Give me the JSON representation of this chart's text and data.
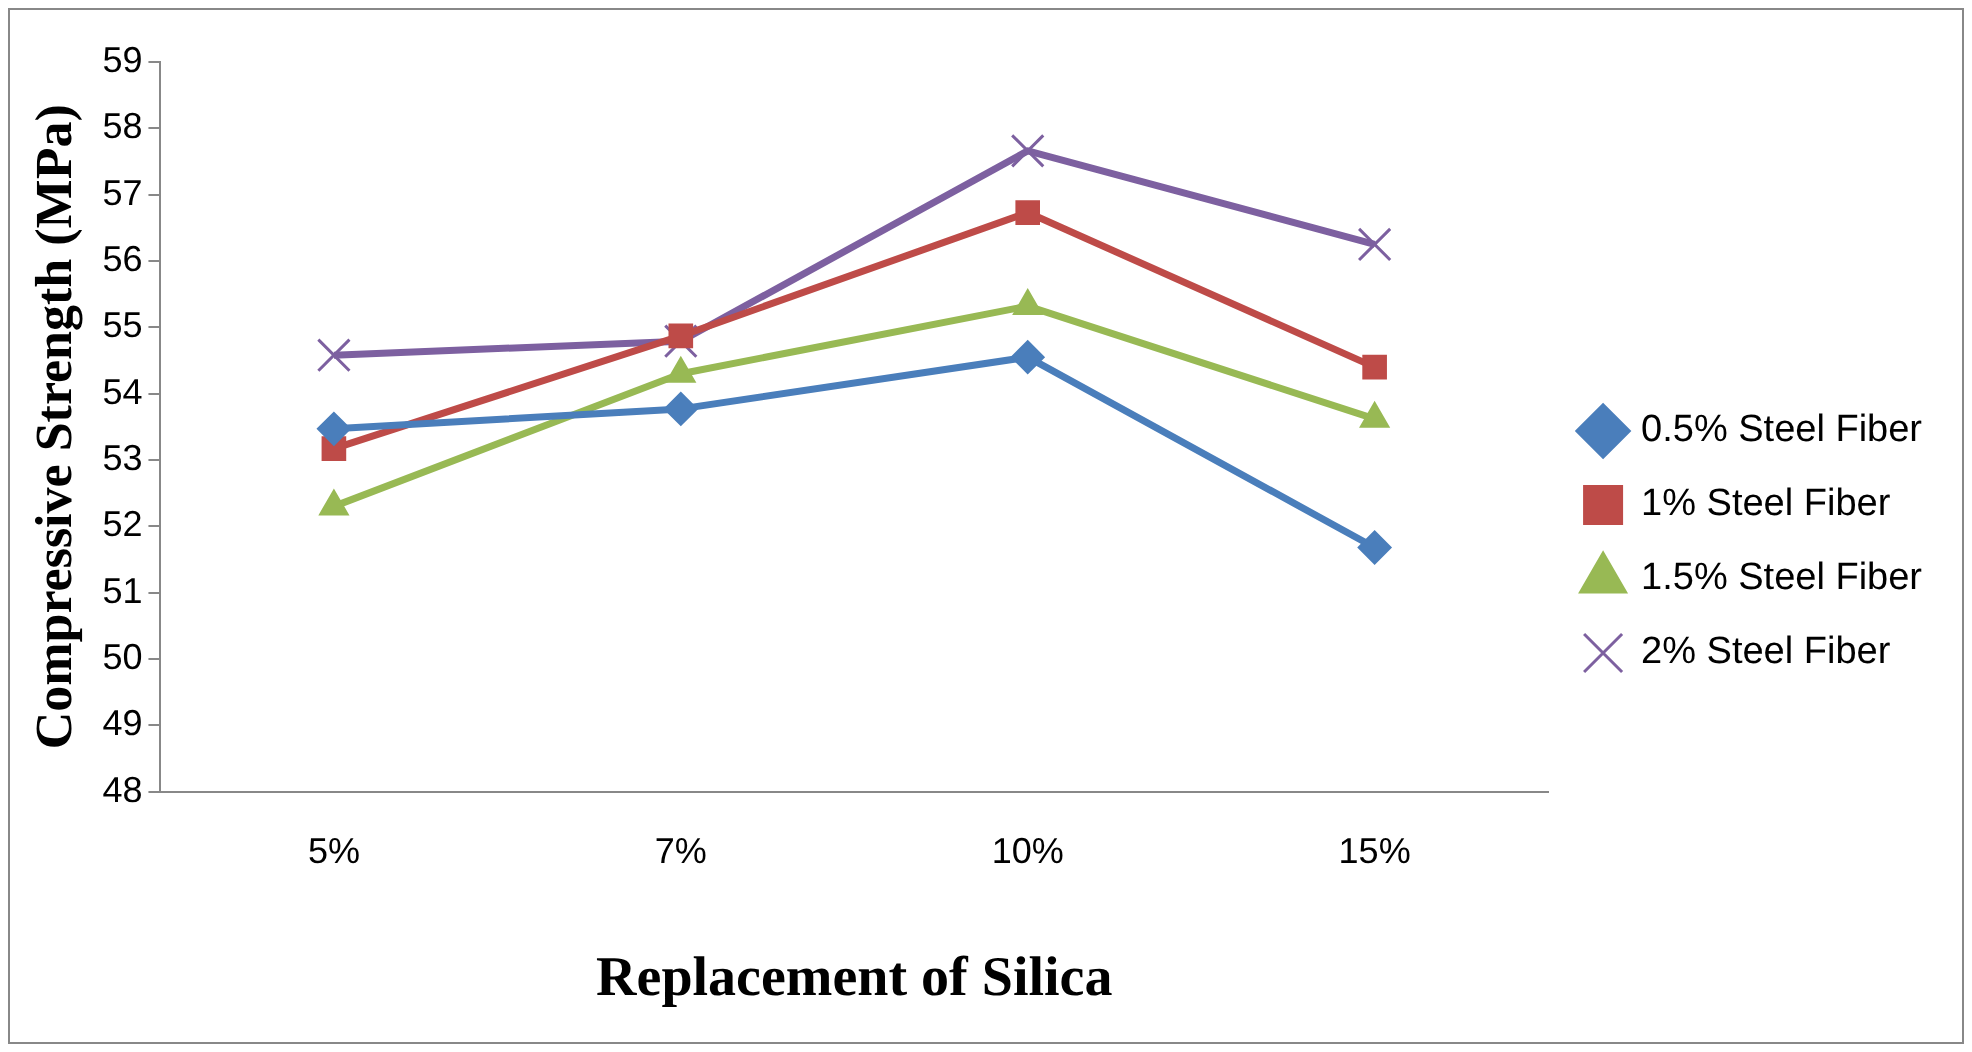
{
  "chart_data": {
    "type": "line",
    "xlabel": "Replacement of Silica",
    "ylabel": "Compressive Strength (MPa)",
    "categories": [
      "5%",
      "7%",
      "10%",
      "15%"
    ],
    "ylim": [
      48,
      59
    ],
    "yticks": [
      48,
      49,
      50,
      51,
      52,
      53,
      54,
      55,
      56,
      57,
      58,
      59
    ],
    "grid": false,
    "legend": "right",
    "series": [
      {
        "name": "0.5% Steel Fiber",
        "color": "#4a7ebb",
        "marker": "diamond",
        "values": [
          53.47,
          53.77,
          54.55,
          51.68
        ]
      },
      {
        "name": "1% Steel Fiber",
        "color": "#be4b48",
        "marker": "square",
        "values": [
          53.17,
          54.87,
          56.73,
          54.4
        ]
      },
      {
        "name": "1.5% Steel Fiber",
        "color": "#98b954",
        "marker": "triangle",
        "values": [
          52.3,
          54.3,
          55.32,
          53.62
        ]
      },
      {
        "name": "2% Steel Fiber",
        "color": "#7d60a0",
        "marker": "cross",
        "values": [
          54.58,
          54.79,
          57.66,
          56.25
        ]
      }
    ]
  }
}
